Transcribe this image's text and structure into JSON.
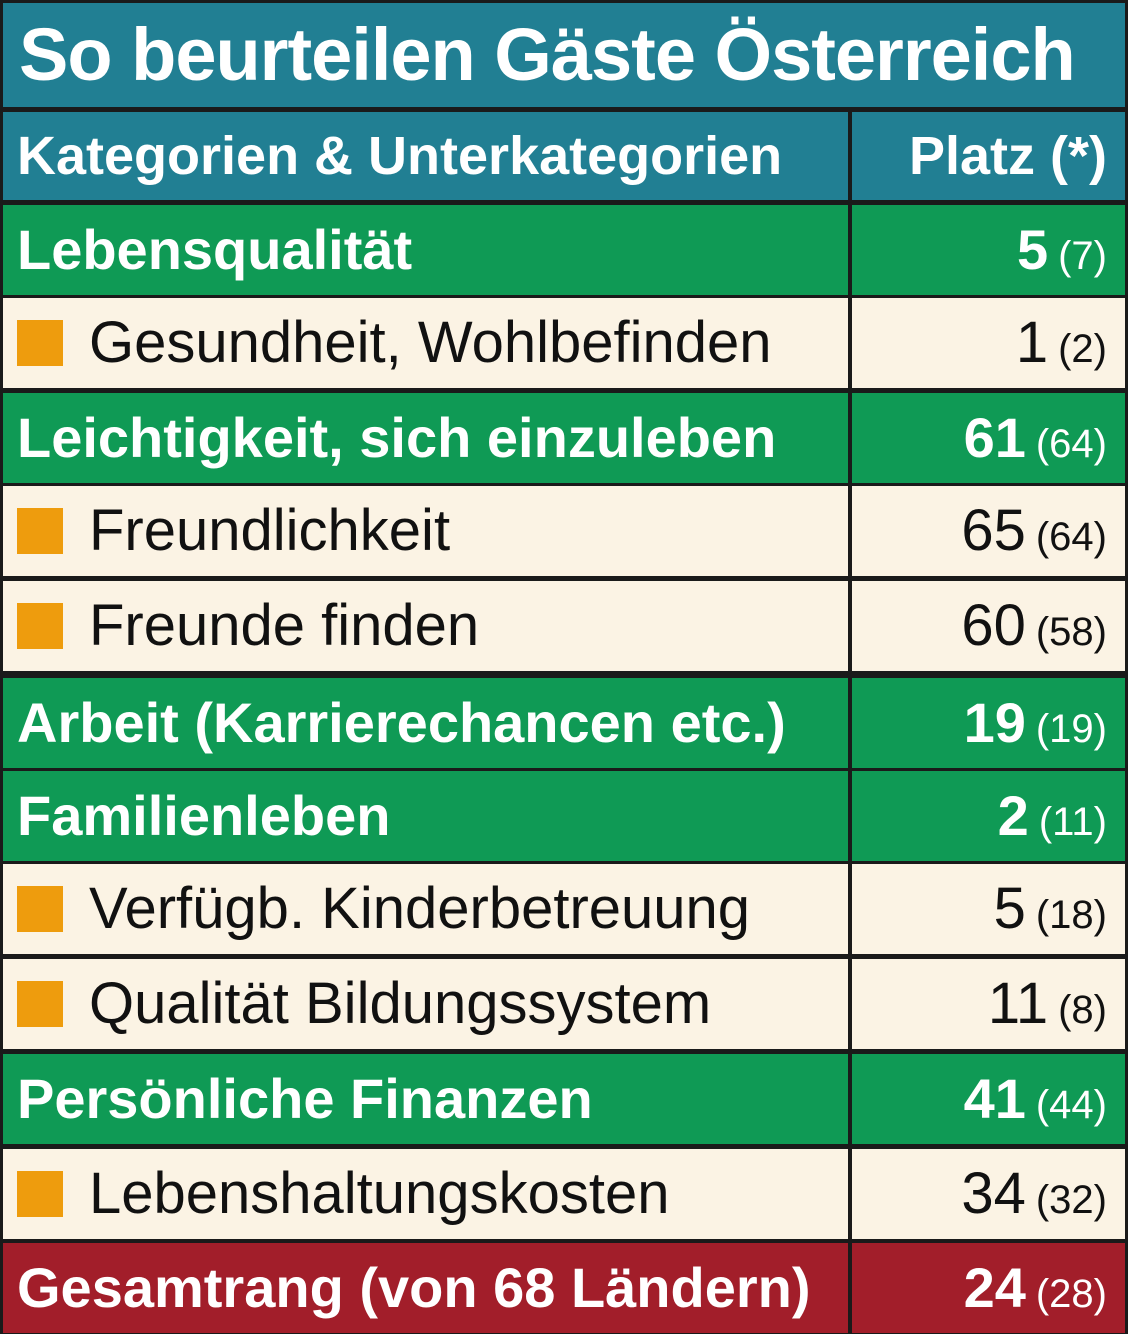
{
  "title": "So beurteilen Gäste Österreich",
  "colors": {
    "header": "#217f93",
    "category": "#0f9a55",
    "subcategory": "#fbf3e4",
    "total": "#a21e2a",
    "bullet": "#ee9c0d"
  },
  "chart_data": {
    "type": "table",
    "title": "So beurteilen Gäste Österreich",
    "columns": [
      "Kategorien & Unterkategorien",
      "Platz (*)"
    ],
    "rows": [
      {
        "kind": "cat",
        "label": "Lebensqualität",
        "rank": "5",
        "prev": "(7)"
      },
      {
        "kind": "sub",
        "label": "Gesundheit, Wohlbefinden",
        "rank": "1",
        "prev": "(2)"
      },
      {
        "kind": "cat",
        "label": "Leichtigkeit, sich einzuleben",
        "rank": "61",
        "prev": "(64)"
      },
      {
        "kind": "sub",
        "label": "Freundlichkeit",
        "rank": "65",
        "prev": "(64)"
      },
      {
        "kind": "sub",
        "label": "Freunde finden",
        "rank": "60",
        "prev": "(58)"
      },
      {
        "kind": "cat",
        "label": "Arbeit (Karrierechancen etc.)",
        "rank": "19",
        "prev": "(19)"
      },
      {
        "kind": "cat",
        "label": "Familienleben",
        "rank": "2",
        "prev": "(11)"
      },
      {
        "kind": "sub",
        "label": "Verfügb. Kinderbetreuung",
        "rank": "5",
        "prev": "(18)"
      },
      {
        "kind": "sub",
        "label": "Qualität Bildungssystem",
        "rank": "11",
        "prev": "(8)"
      },
      {
        "kind": "cat",
        "label": "Persönliche Finanzen",
        "rank": "41",
        "prev": "(44)"
      },
      {
        "kind": "sub",
        "label": "Lebenshaltungskosten",
        "rank": "34",
        "prev": "(32)"
      },
      {
        "kind": "total",
        "label": "Gesamtrang (von 68 Ländern)",
        "rank": "24",
        "prev": "(28)"
      }
    ]
  }
}
